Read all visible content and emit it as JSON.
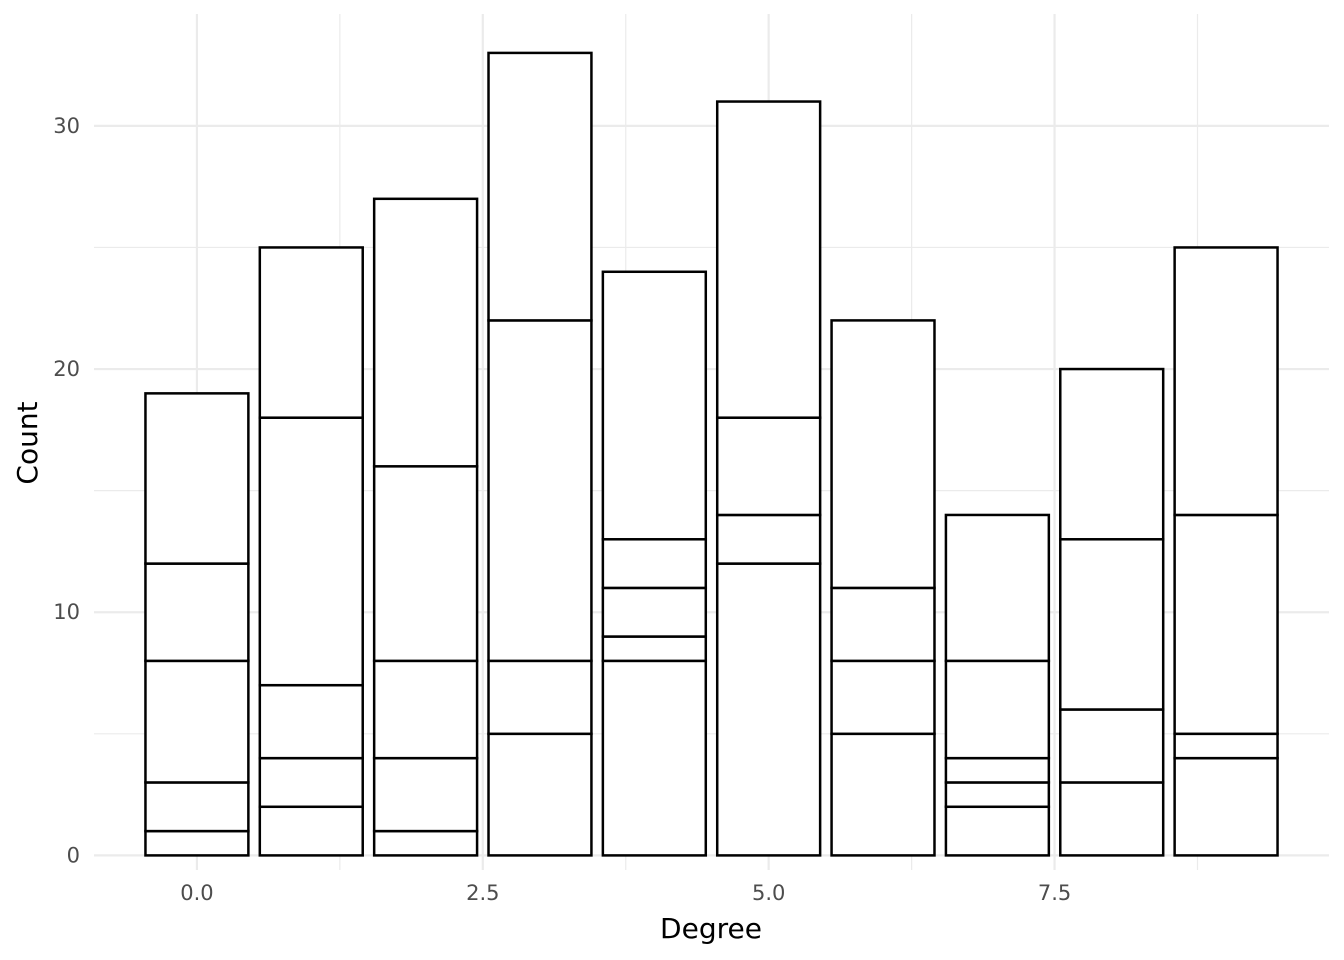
{
  "chart_data": {
    "type": "bar",
    "stacked": true,
    "xlabel": "Degree",
    "ylabel": "Count",
    "xlim": [
      -0.9,
      9.9
    ],
    "ylim": [
      -0.6,
      34.6
    ],
    "x_ticks": [
      "0.0",
      "2.5",
      "5.0",
      "7.5"
    ],
    "x_tick_values": [
      0,
      2.5,
      5,
      7.5
    ],
    "y_ticks": [
      "0",
      "10",
      "20",
      "30"
    ],
    "y_tick_values": [
      0,
      10,
      20,
      30
    ],
    "grid": true,
    "bar_fill": "#ffffff",
    "bar_outline": "#000000",
    "bars": [
      {
        "x": 0,
        "total": 19,
        "segment_boundaries": [
          0,
          1,
          3,
          8,
          12,
          19
        ]
      },
      {
        "x": 1,
        "total": 25,
        "segment_boundaries": [
          0,
          2,
          4,
          7,
          18,
          25
        ]
      },
      {
        "x": 2,
        "total": 27,
        "segment_boundaries": [
          0,
          1,
          4,
          8,
          16,
          27
        ]
      },
      {
        "x": 3,
        "total": 33,
        "segment_boundaries": [
          0,
          5,
          8,
          22,
          33
        ]
      },
      {
        "x": 4,
        "total": 24,
        "segment_boundaries": [
          0,
          8,
          9,
          11,
          13,
          24
        ]
      },
      {
        "x": 5,
        "total": 31,
        "segment_boundaries": [
          0,
          12,
          14,
          18,
          31
        ]
      },
      {
        "x": 6,
        "total": 22,
        "segment_boundaries": [
          0,
          5,
          8,
          11,
          22
        ]
      },
      {
        "x": 7,
        "total": 14,
        "segment_boundaries": [
          0,
          2,
          3,
          4,
          8,
          14
        ]
      },
      {
        "x": 8,
        "total": 20,
        "segment_boundaries": [
          0,
          3,
          6,
          13,
          20
        ]
      },
      {
        "x": 9,
        "total": 25,
        "segment_boundaries": [
          0,
          4,
          5,
          14,
          25
        ]
      }
    ]
  }
}
